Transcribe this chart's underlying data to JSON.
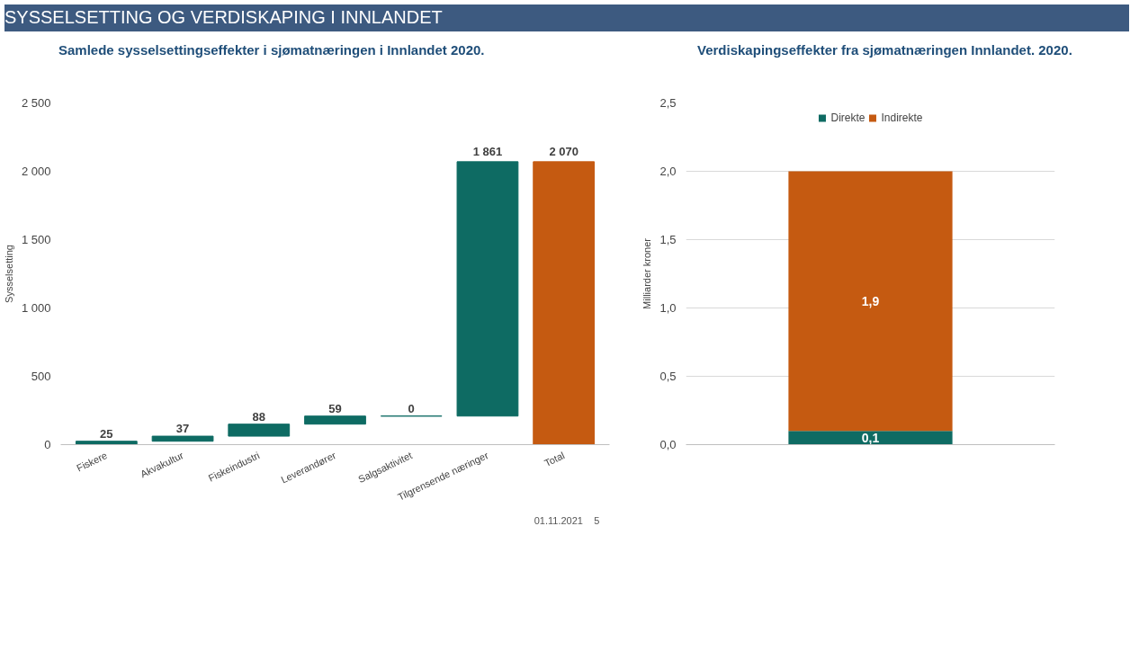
{
  "chart_data": [
    {
      "type": "bar",
      "title": "Samlede sysselsettingseffekter i sjømatnæringen i Innlandet 2020.",
      "ylabel": "Sysselsetting",
      "categories": [
        "Fiskere",
        "Akvakultur",
        "Fiskeindustri",
        "Leverandører",
        "Salgsaktivitet",
        "Tilgrensende næringer",
        "Total"
      ],
      "values": [
        25,
        37,
        88,
        59,
        0,
        1861,
        2070
      ],
      "base": [
        0,
        25,
        62,
        150,
        209,
        209,
        0
      ],
      "colors": [
        "#0e6b63",
        "#0e6b63",
        "#0e6b63",
        "#0e6b63",
        "#0e6b63",
        "#0e6b63",
        "#c55a11"
      ],
      "value_labels": [
        "25",
        "37",
        "88",
        "59",
        "0",
        "1 861",
        "2 070"
      ],
      "ylim": [
        0,
        2500
      ],
      "yticks": [
        0,
        500,
        {
          "value": 1000,
          "label": "1 000"
        },
        {
          "value": 1500,
          "label": "1 500"
        },
        {
          "value": 2000,
          "label": "2 000"
        },
        {
          "value": 2500,
          "label": "2 500"
        }
      ],
      "annotations": [
        "SYSSELSETTING OG VERDISKAPING I INNLANDET",
        "01.11.2021",
        "5"
      ]
    },
    {
      "type": "bar",
      "title": "Verdiskapingseffekter fra sjømatnæringen Innlandet. 2020.",
      "ylabel": "Milliarder kroner",
      "categories": [
        null
      ],
      "stacked": true,
      "legend": "top",
      "grid": "y",
      "data_labels": true,
      "series": [
        {
          "name": "Direkte",
          "color": "#0e6b63",
          "values": [
            0.1
          ],
          "value_labels": [
            "0,1"
          ]
        },
        {
          "name": "Indirekte",
          "color": "#c55a11",
          "values": [
            1.9
          ],
          "value_labels": [
            "1,9"
          ]
        }
      ],
      "ylim": [
        0,
        2.5
      ],
      "yticks": [
        {
          "value": 0,
          "label": "0,0"
        },
        {
          "value": 0.5,
          "label": "0,5"
        },
        {
          "value": 1,
          "label": "1,0"
        },
        {
          "value": 1.5,
          "label": "1,5"
        },
        {
          "value": 2,
          "label": "2,0"
        },
        {
          "value": 2.5,
          "label": "2,5"
        }
      ]
    }
  ]
}
